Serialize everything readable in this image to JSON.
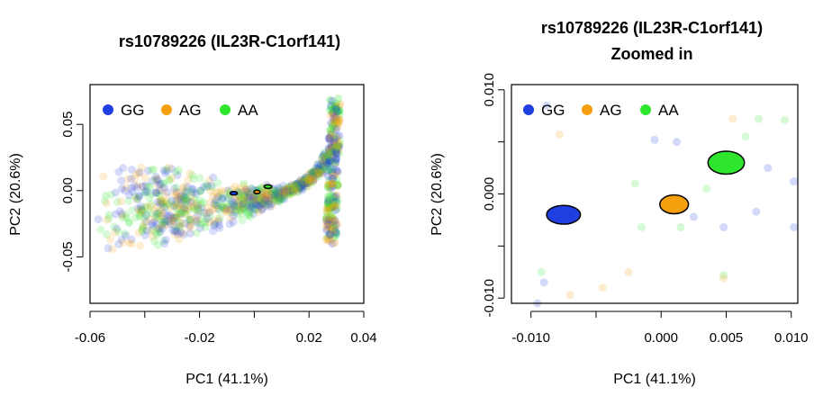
{
  "panels": [
    {
      "chart_data": {
        "type": "scatter",
        "title": "rs10789226 (IL23R-C1orf141)",
        "subtitle": "",
        "xlabel": "PC1 (41.1%)",
        "ylabel": "PC2 (20.6%)",
        "xlim": [
          -0.06,
          0.04
        ],
        "ylim": [
          -0.085,
          0.08
        ],
        "xticks": [
          -0.06,
          -0.04,
          -0.02,
          0.0,
          0.02,
          0.04
        ],
        "xtick_labels": [
          "-0.06",
          "",
          "-0.02",
          "",
          "0.02",
          "0.04"
        ],
        "yticks": [
          -0.05,
          0.0,
          0.05
        ],
        "ytick_labels": [
          "-0.05",
          "0.00",
          "0.05"
        ],
        "grid": false,
        "legend": {
          "position": "top-left",
          "entries": [
            {
              "label": "GG",
              "color": "#1f3fe0"
            },
            {
              "label": "AG",
              "color": "#f5a00f"
            },
            {
              "label": "AA",
              "color": "#2ee62e"
            }
          ]
        },
        "background_points": "semi-transparent individual samples colored by genotype (GG, AG, AA)",
        "series": [
          {
            "name": "GG",
            "color": "#1f3fe0",
            "centroid": {
              "x": -0.0075,
              "y": -0.002,
              "rx": 0.0013,
              "ry": 0.0009
            }
          },
          {
            "name": "AG",
            "color": "#f5a00f",
            "centroid": {
              "x": 0.001,
              "y": -0.001,
              "rx": 0.0011,
              "ry": 0.0009
            }
          },
          {
            "name": "AA",
            "color": "#2ee62e",
            "centroid": {
              "x": 0.005,
              "y": 0.003,
              "rx": 0.0014,
              "ry": 0.0011
            }
          }
        ]
      }
    },
    {
      "chart_data": {
        "type": "scatter",
        "title": "rs10789226 (IL23R-C1orf141)",
        "subtitle": "Zoomed in",
        "xlabel": "PC1 (41.1%)",
        "ylabel": "PC2 (20.6%)",
        "xlim": [
          -0.0115,
          0.0105
        ],
        "ylim": [
          -0.0105,
          0.0105
        ],
        "xticks": [
          -0.01,
          -0.005,
          0.0,
          0.005,
          0.01
        ],
        "xtick_labels": [
          "-0.010",
          "",
          "0.000",
          "0.005",
          "0.010"
        ],
        "yticks": [
          -0.01,
          -0.005,
          0.0,
          0.005,
          0.01
        ],
        "ytick_labels": [
          "-0.010",
          "",
          "0.000",
          "",
          "0.010"
        ],
        "grid": false,
        "legend": {
          "position": "top-left",
          "entries": [
            {
              "label": "GG",
              "color": "#1f3fe0"
            },
            {
              "label": "AG",
              "color": "#f5a00f"
            },
            {
              "label": "AA",
              "color": "#2ee62e"
            }
          ]
        },
        "series": [
          {
            "name": "GG",
            "color": "#1f3fe0",
            "centroid": {
              "x": -0.0075,
              "y": -0.002,
              "rx": 0.0013,
              "ry": 0.0009
            }
          },
          {
            "name": "AG",
            "color": "#f5a00f",
            "centroid": {
              "x": 0.001,
              "y": -0.001,
              "rx": 0.0011,
              "ry": 0.0009
            }
          },
          {
            "name": "AA",
            "color": "#2ee62e",
            "centroid": {
              "x": 0.005,
              "y": 0.003,
              "rx": 0.0014,
              "ry": 0.0011
            }
          }
        ],
        "background_points": [
          {
            "x": -0.0095,
            "y": -0.0105,
            "g": "GG"
          },
          {
            "x": -0.0092,
            "y": -0.0075,
            "g": "AA"
          },
          {
            "x": -0.009,
            "y": -0.0085,
            "g": "GG"
          },
          {
            "x": -0.007,
            "y": -0.0097,
            "g": "AG"
          },
          {
            "x": -0.0088,
            "y": 0.0085,
            "g": "GG"
          },
          {
            "x": -0.0078,
            "y": 0.0057,
            "g": "AG"
          },
          {
            "x": -0.0005,
            "y": 0.0052,
            "g": "GG"
          },
          {
            "x": -0.0015,
            "y": -0.0032,
            "g": "AA"
          },
          {
            "x": -0.002,
            "y": 0.001,
            "g": "AA"
          },
          {
            "x": -0.0045,
            "y": -0.009,
            "g": "AG"
          },
          {
            "x": -0.0025,
            "y": -0.0075,
            "g": "AG"
          },
          {
            "x": 0.0012,
            "y": 0.005,
            "g": "GG"
          },
          {
            "x": 0.0015,
            "y": -0.0032,
            "g": "AA"
          },
          {
            "x": 0.0025,
            "y": -0.0022,
            "g": "GG"
          },
          {
            "x": 0.0035,
            "y": 0.0005,
            "g": "AA"
          },
          {
            "x": 0.0048,
            "y": -0.0032,
            "g": "GG"
          },
          {
            "x": 0.0048,
            "y": -0.0078,
            "g": "AA"
          },
          {
            "x": 0.0048,
            "y": -0.0081,
            "g": "AG"
          },
          {
            "x": 0.0055,
            "y": 0.0072,
            "g": "AG"
          },
          {
            "x": 0.0065,
            "y": 0.0055,
            "g": "AA"
          },
          {
            "x": 0.0075,
            "y": 0.0072,
            "g": "AA"
          },
          {
            "x": 0.0073,
            "y": -0.0017,
            "g": "GG"
          },
          {
            "x": 0.0082,
            "y": 0.0025,
            "g": "GG"
          },
          {
            "x": 0.0095,
            "y": 0.0071,
            "g": "AA"
          },
          {
            "x": 0.0102,
            "y": 0.0012,
            "g": "GG"
          },
          {
            "x": 0.0102,
            "y": -0.0032,
            "g": "GG"
          }
        ]
      }
    }
  ]
}
